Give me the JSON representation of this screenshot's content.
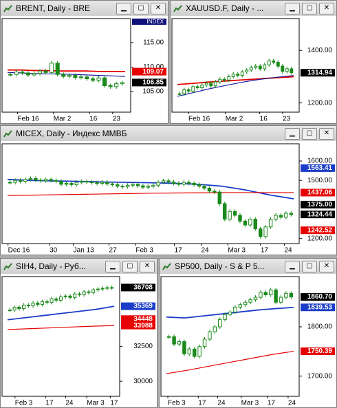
{
  "windows": [
    {
      "title": "BRENT, Daily - BRE",
      "axis_header": "INDEX",
      "ylim": [
        100.8,
        119.9
      ],
      "yticks": [
        {
          "value": 115,
          "label": "115.00"
        },
        {
          "value": 110,
          "label": "110.00"
        },
        {
          "value": 105,
          "label": "105.00"
        }
      ],
      "badges": [
        {
          "value": 109.07,
          "label": "109.07",
          "color": "#e60000"
        },
        {
          "value": 106.85,
          "label": "106.85",
          "color": "#000000"
        }
      ],
      "xlabels": [
        "Feb 16",
        "Mar 2",
        "16",
        "23"
      ],
      "closes": [
        108.5,
        109,
        108.8,
        108.4,
        108.7,
        109.2,
        108.9,
        110.8,
        108.5,
        108.1,
        108.3,
        107.9,
        108,
        107.6,
        107.3,
        107.8,
        106.2,
        106,
        106.6,
        106.85
      ],
      "lines": [
        {
          "color": "#e60000",
          "values": [
            109.4,
            109.4,
            109.3,
            109.3,
            109.2,
            109.2,
            109.2,
            109.1,
            109.1,
            109.07
          ]
        },
        {
          "color": "#1a1aa0",
          "values": [
            108.9,
            108.8,
            108.7,
            108.6,
            108.6,
            108.5,
            108.4,
            108.3,
            108.2,
            108.1
          ]
        }
      ]
    },
    {
      "title": "XAUUSD.F, Daily - ...",
      "ylim": [
        1165,
        1521
      ],
      "yticks": [
        {
          "value": 1400,
          "label": "1400.00"
        },
        {
          "value": 1200,
          "label": "1200.00"
        }
      ],
      "badges": [
        {
          "value": 1314.94,
          "label": "1314.94",
          "color": "#000000"
        }
      ],
      "xlabels": [
        "Feb 16",
        "Mar 2",
        "16",
        "23"
      ],
      "closes": [
        1235,
        1250,
        1245,
        1262,
        1258,
        1268,
        1275,
        1265,
        1280,
        1290,
        1287,
        1300,
        1310,
        1305,
        1318,
        1325,
        1335,
        1340,
        1330,
        1345,
        1360,
        1355,
        1340,
        1320,
        1330,
        1315
      ],
      "lines": [
        {
          "color": "#e60000",
          "values": [
            1270,
            1275,
            1280,
            1284,
            1288,
            1292,
            1296,
            1300
          ]
        },
        {
          "color": "#1a1aa0",
          "values": [
            1225,
            1240,
            1255,
            1268,
            1280,
            1290,
            1298,
            1304
          ]
        }
      ]
    },
    {
      "title": "MICEX, Daily - Индекс ММВБ",
      "ylim": [
        1174,
        1689
      ],
      "yticks": [
        {
          "value": 1600,
          "label": "1600.00"
        },
        {
          "value": 1500,
          "label": "1500.00"
        },
        {
          "value": 1200,
          "label": "1200.00"
        }
      ],
      "badges": [
        {
          "value": 1563.41,
          "label": "1563.41",
          "color": "#1a3cc8"
        },
        {
          "value": 1437.06,
          "label": "1437.06",
          "color": "#e60000"
        },
        {
          "value": 1375,
          "label": "1375.00",
          "color": "#000000"
        },
        {
          "value": 1324.44,
          "label": "1324.44",
          "color": "#000000"
        },
        {
          "value": 1242.52,
          "label": "1242.52",
          "color": "#e60000"
        }
      ],
      "xlabels": [
        "Dec 16",
        "30",
        "Jan 13",
        "27",
        "Feb 3",
        "17",
        "24",
        "Mar 3",
        "17",
        "24"
      ],
      "closes": [
        1490,
        1500,
        1495,
        1505,
        1510,
        1502,
        1498,
        1505,
        1500,
        1495,
        1480,
        1485,
        1478,
        1490,
        1495,
        1492,
        1488,
        1485,
        1490,
        1482,
        1478,
        1470,
        1468,
        1475,
        1480,
        1472,
        1465,
        1470,
        1475,
        1490,
        1498,
        1492,
        1485,
        1480,
        1490,
        1485,
        1478,
        1470,
        1460,
        1445,
        1440,
        1380,
        1300,
        1340,
        1320,
        1290,
        1270,
        1300,
        1250,
        1210,
        1260,
        1300,
        1320,
        1310,
        1330,
        1324
      ],
      "lines": [
        {
          "color": "#1a3cc8",
          "values": [
            1505,
            1500,
            1497,
            1495,
            1492,
            1490,
            1488,
            1485,
            1480,
            1470,
            1450,
            1425,
            1405
          ]
        },
        {
          "color": "#e60000",
          "values": [
            1422,
            1424,
            1426,
            1428,
            1430,
            1432,
            1434,
            1435,
            1436,
            1437,
            1437,
            1437,
            1437
          ]
        }
      ]
    },
    {
      "title": "SIH4, Daily - Руб...",
      "ylim": [
        28922,
        37492
      ],
      "yticks": [
        {
          "value": 32500,
          "label": "32500"
        },
        {
          "value": 30000,
          "label": "30000"
        }
      ],
      "badges": [
        {
          "value": 36708,
          "label": "36708",
          "color": "#000000"
        },
        {
          "value": 35369,
          "label": "35369",
          "color": "#1a3cc8"
        },
        {
          "value": 34448,
          "label": "34448",
          "color": "#e60000"
        },
        {
          "value": 33988,
          "label": "33988",
          "color": "#e60000"
        }
      ],
      "xlabels": [
        "Feb 3",
        "17",
        "24",
        "Mar 3",
        "17"
      ],
      "closes": [
        35100,
        35300,
        35200,
        35450,
        35400,
        35600,
        35500,
        35700,
        35650,
        35900,
        35800,
        36050,
        36100,
        36000,
        36250,
        36200,
        36400,
        36350,
        36550,
        36600,
        36650,
        36700,
        36708
      ],
      "lines": [
        {
          "color": "#1a3cc8",
          "values": [
            34400,
            34550,
            34700,
            34850,
            35000,
            35150,
            35369
          ]
        },
        {
          "color": "#e60000",
          "values": [
            33700,
            33760,
            33820,
            33880,
            33940,
            33988
          ]
        }
      ]
    },
    {
      "title": "SP500, Daily - S & P 5...",
      "ylim": [
        1659,
        1902
      ],
      "yticks": [
        {
          "value": 1800,
          "label": "1800.00"
        },
        {
          "value": 1700,
          "label": "1700.00"
        }
      ],
      "badges": [
        {
          "value": 1860.7,
          "label": "1860.70",
          "color": "#000000"
        },
        {
          "value": 1839.53,
          "label": "1839.53",
          "color": "#1a3cc8"
        },
        {
          "value": 1750.39,
          "label": "1750.39",
          "color": "#e60000"
        }
      ],
      "xlabels": [
        "Feb 3",
        "17",
        "24",
        "Mar 3",
        "17",
        "24"
      ],
      "closes": [
        1780,
        1765,
        1770,
        1745,
        1755,
        1740,
        1760,
        1775,
        1790,
        1800,
        1815,
        1825,
        1830,
        1840,
        1845,
        1850,
        1855,
        1860,
        1870,
        1865,
        1875,
        1850,
        1860,
        1868,
        1860.7
      ],
      "lines": [
        {
          "color": "#1a3cc8",
          "values": [
            1820,
            1818,
            1822,
            1826,
            1830,
            1834,
            1837,
            1839.53
          ]
        },
        {
          "color": "#e60000",
          "values": [
            1705,
            1712,
            1720,
            1728,
            1736,
            1744,
            1750.39
          ]
        }
      ]
    }
  ]
}
